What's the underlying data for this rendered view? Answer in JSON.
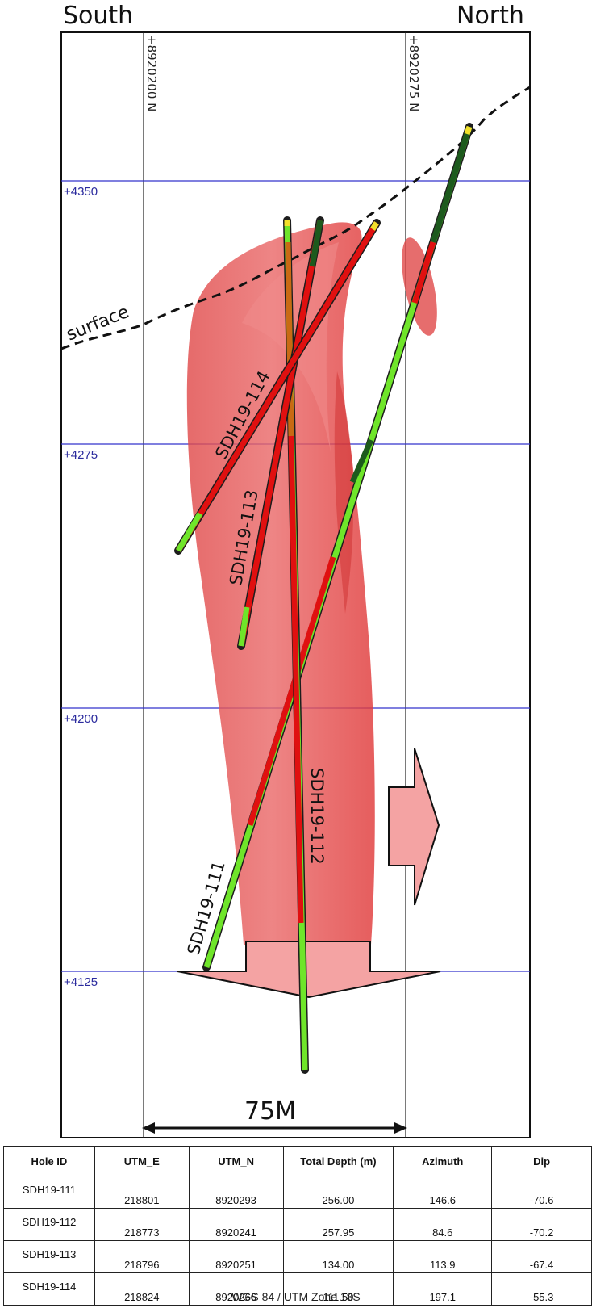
{
  "header": {
    "left_label": "South",
    "right_label": "North"
  },
  "gridlines": {
    "northings": [
      "+8920200 N",
      "+8920275 N"
    ],
    "elevations": [
      "+4350",
      "+4275",
      "+4200",
      "+4125"
    ]
  },
  "surface_label": "surface",
  "holes": [
    {
      "id": "SDH19-111"
    },
    {
      "id": "SDH19-112"
    },
    {
      "id": "SDH19-113"
    },
    {
      "id": "SDH19-114"
    }
  ],
  "scale_bar": {
    "label": "75M"
  },
  "table": {
    "headers": [
      "Hole ID",
      "UTM_E",
      "UTM_N",
      "Total Depth (m)",
      "Azimuth",
      "Dip"
    ],
    "rows": [
      [
        "SDH19-111",
        "218801",
        "8920293",
        "256.00",
        "146.6",
        "-70.6"
      ],
      [
        "SDH19-112",
        "218773",
        "8920241",
        "257.95",
        "84.6",
        "-70.2"
      ],
      [
        "SDH19-113",
        "218796",
        "8920251",
        "134.00",
        "113.9",
        "-67.4"
      ],
      [
        "SDH19-114",
        "218824",
        "8920266",
        "111.50",
        "197.1",
        "-55.3"
      ]
    ]
  },
  "footer": "WGS 84 / UTM Zone 18S",
  "colors": {
    "body": "#e23b3b",
    "arrow": "#f4a3a3",
    "grid_blue": "#2b2bd6",
    "label_blue": "#2b2b9e",
    "hole_green": "#6fe52a",
    "hole_red": "#e01010",
    "hole_dark": "#1d5a1d"
  }
}
